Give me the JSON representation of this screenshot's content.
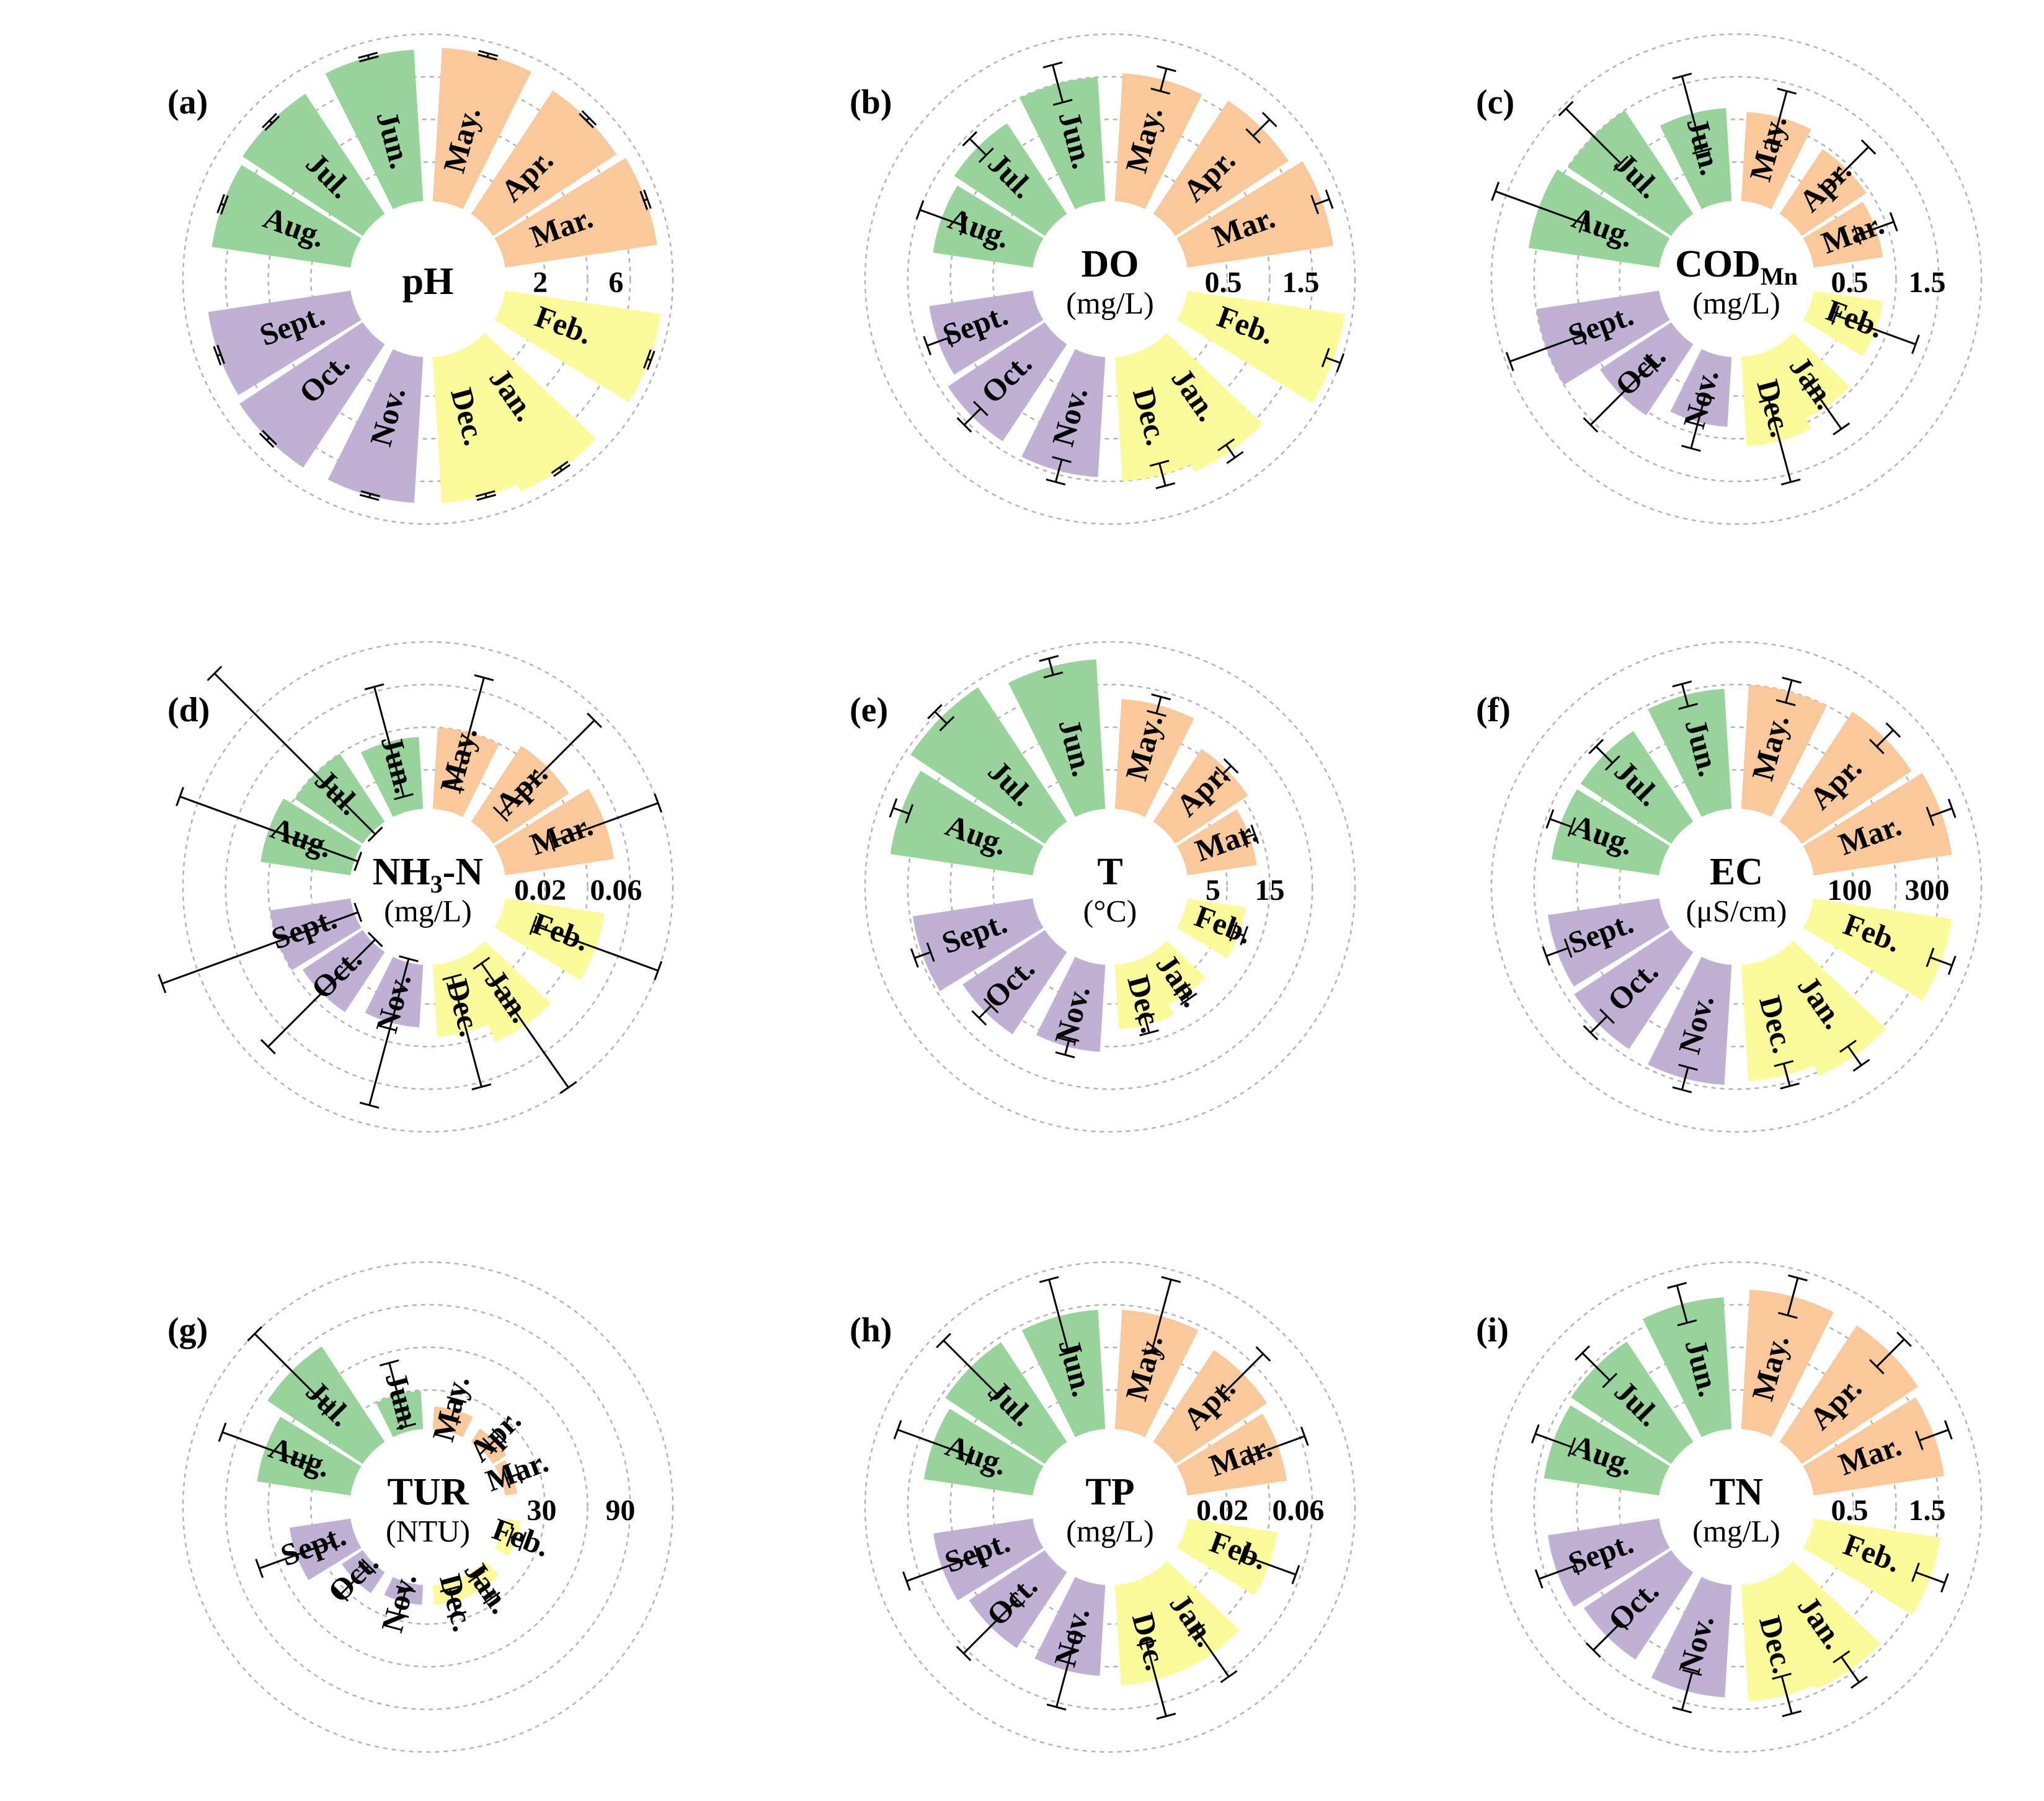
{
  "colors": {
    "spring": "#f9c89b",
    "summer": "#97d39a",
    "autumn": "#bfb1d3",
    "winter": "#fbfb9c",
    "grid": "#b3b3b3",
    "errorbar": "#000000",
    "text": "#000000"
  },
  "chart_data": [
    {
      "type": "polar-bar",
      "panel_label": "(a)",
      "title": "pH",
      "unit": "",
      "tick_labels": [
        "2",
        "6"
      ],
      "ticks": [
        2,
        6
      ],
      "rmax": 9,
      "categories": [
        "Jan.",
        "Feb.",
        "Mar.",
        "Apr.",
        "May.",
        "Jun.",
        "Jul.",
        "Aug.",
        "Sept.",
        "Oct.",
        "Nov.",
        "Dec."
      ],
      "values": [
        8.3,
        8.5,
        8.3,
        8.0,
        8.3,
        8.2,
        7.8,
        7.6,
        7.8,
        8.0,
        7.9,
        7.9
      ],
      "errors": [
        0.1,
        0.1,
        0.1,
        0.1,
        0.1,
        0.1,
        0.1,
        0.1,
        0.1,
        0.1,
        0.1,
        0.1
      ]
    },
    {
      "type": "polar-bar",
      "panel_label": "(b)",
      "title": "DO",
      "unit": "(mg/L)",
      "tick_labels": [
        "0.5",
        "1.5"
      ],
      "ticks": [
        0.5,
        1.5
      ],
      "rmax": 2.2,
      "categories": [
        "Jan.",
        "Feb.",
        "Mar.",
        "Apr.",
        "May.",
        "Jun.",
        "Jul.",
        "Aug.",
        "Sept.",
        "Oct.",
        "Nov.",
        "Dec."
      ],
      "values": [
        1.75,
        2.1,
        1.95,
        1.8,
        1.7,
        1.65,
        1.45,
        1.35,
        1.4,
        1.55,
        1.6,
        1.65
      ],
      "errors": [
        0.1,
        0.1,
        0.1,
        0.15,
        0.15,
        0.25,
        0.15,
        0.3,
        0.15,
        0.15,
        0.15,
        0.15
      ]
    },
    {
      "type": "polar-bar",
      "panel_label": "(c)",
      "title": "COD",
      "title_sub": "Mn",
      "unit": "(mg/L)",
      "tick_labels": [
        "0.5",
        "1.5"
      ],
      "ticks": [
        0.5,
        1.5
      ],
      "rmax": 2.2,
      "categories": [
        "Jan.",
        "Feb.",
        "Mar.",
        "Apr.",
        "May.",
        "Jun.",
        "Jul.",
        "Aug.",
        "Sept.",
        "Oct.",
        "Nov.",
        "Dec."
      ],
      "values": [
        1.05,
        0.95,
        0.95,
        1.05,
        1.2,
        1.25,
        1.65,
        1.75,
        1.65,
        1.15,
        0.95,
        1.2
      ],
      "errors": [
        0.35,
        0.55,
        0.25,
        0.4,
        0.35,
        0.5,
        0.5,
        0.6,
        0.5,
        0.55,
        0.35,
        0.55
      ]
    },
    {
      "type": "polar-bar",
      "panel_label": "(d)",
      "title": "NH",
      "title_sub": "3",
      "title_suffix": "-N",
      "unit": "(mg/L)",
      "tick_labels": [
        "0.02",
        "0.06"
      ],
      "ticks": [
        0.02,
        0.06
      ],
      "rmax": 0.09,
      "categories": [
        "Jan.",
        "Feb.",
        "Mar.",
        "Apr.",
        "May.",
        "Jun.",
        "Jul.",
        "Aug.",
        "Sept.",
        "Oct.",
        "Nov.",
        "Dec."
      ],
      "values": [
        0.05,
        0.055,
        0.06,
        0.05,
        0.045,
        0.04,
        0.045,
        0.05,
        0.045,
        0.04,
        0.035,
        0.04
      ],
      "errors": [
        0.04,
        0.035,
        0.03,
        0.035,
        0.03,
        0.03,
        0.075,
        0.05,
        0.065,
        0.04,
        0.045,
        0.03
      ]
    },
    {
      "type": "polar-bar",
      "panel_label": "(e)",
      "title": "T",
      "unit": "(°C)",
      "tick_labels": [
        "5",
        "15"
      ],
      "ticks": [
        5,
        15
      ],
      "rmax": 30,
      "categories": [
        "Jan.",
        "Feb.",
        "Mar.",
        "Apr.",
        "May.",
        "Jun.",
        "Jul.",
        "Aug.",
        "Sept.",
        "Oct.",
        "Nov.",
        "Dec."
      ],
      "values": [
        10,
        11,
        13,
        16,
        20,
        27,
        29,
        26,
        22,
        18,
        16,
        12
      ],
      "errors": [
        1,
        1,
        1,
        1,
        1.5,
        1.5,
        1.5,
        1.5,
        1.5,
        1.5,
        1.5,
        1.5
      ]
    },
    {
      "type": "polar-bar",
      "panel_label": "(f)",
      "title": "EC",
      "unit": "(μS/cm)",
      "tick_labels": [
        "100",
        "300"
      ],
      "ticks": [
        100,
        300
      ],
      "rmax": 440,
      "categories": [
        "Jan.",
        "Feb.",
        "Mar.",
        "Apr.",
        "May.",
        "Jun.",
        "Jul.",
        "Aug.",
        "Sept.",
        "Oct.",
        "Nov.",
        "Dec."
      ],
      "values": [
        340,
        370,
        370,
        350,
        330,
        320,
        290,
        290,
        300,
        310,
        320,
        310
      ],
      "errors": [
        30,
        30,
        30,
        30,
        30,
        30,
        30,
        30,
        30,
        30,
        30,
        30
      ]
    },
    {
      "type": "polar-bar",
      "panel_label": "(g)",
      "title": "TUR",
      "unit": "(NTU)",
      "tick_labels": [
        "30",
        "90"
      ],
      "ticks": [
        30,
        90
      ],
      "rmax": 130,
      "categories": [
        "Jan.",
        "Feb.",
        "Mar.",
        "Apr.",
        "May.",
        "Jun.",
        "Jul.",
        "Aug.",
        "Sept.",
        "Oct.",
        "Nov.",
        "Dec."
      ],
      "values": [
        18,
        15,
        12,
        15,
        20,
        32,
        90,
        75,
        50,
        22,
        18,
        18
      ],
      "errors": [
        10,
        5,
        5,
        5,
        8,
        25,
        40,
        35,
        30,
        15,
        10,
        10
      ]
    },
    {
      "type": "polar-bar",
      "panel_label": "(h)",
      "title": "TP",
      "unit": "(mg/L)",
      "tick_labels": [
        "0.02",
        "0.06"
      ],
      "ticks": [
        0.02,
        0.06
      ],
      "rmax": 0.09,
      "categories": [
        "Jan.",
        "Feb.",
        "Mar.",
        "Apr.",
        "May.",
        "Jun.",
        "Jul.",
        "Aug.",
        "Sept.",
        "Oct.",
        "Nov.",
        "Dec."
      ],
      "values": [
        0.055,
        0.05,
        0.055,
        0.06,
        0.065,
        0.065,
        0.065,
        0.06,
        0.055,
        0.05,
        0.05,
        0.055
      ],
      "errors": [
        0.015,
        0.015,
        0.015,
        0.015,
        0.02,
        0.02,
        0.02,
        0.02,
        0.02,
        0.02,
        0.02,
        0.02
      ]
    },
    {
      "type": "polar-bar",
      "panel_label": "(i)",
      "title": "TN",
      "unit": "(mg/L)",
      "tick_labels": [
        "0.5",
        "1.5"
      ],
      "ticks": [
        0.5,
        1.5
      ],
      "rmax": 2.2,
      "categories": [
        "Jan.",
        "Feb.",
        "Mar.",
        "Apr.",
        "May.",
        "Jun.",
        "Jul.",
        "Aug.",
        "Sept.",
        "Oct.",
        "Nov.",
        "Dec."
      ],
      "values": [
        1.6,
        1.7,
        1.75,
        1.85,
        1.85,
        1.75,
        1.6,
        1.55,
        1.5,
        1.4,
        1.5,
        1.55
      ],
      "errors": [
        0.2,
        0.2,
        0.2,
        0.25,
        0.25,
        0.25,
        0.25,
        0.25,
        0.25,
        0.25,
        0.25,
        0.25
      ]
    }
  ]
}
